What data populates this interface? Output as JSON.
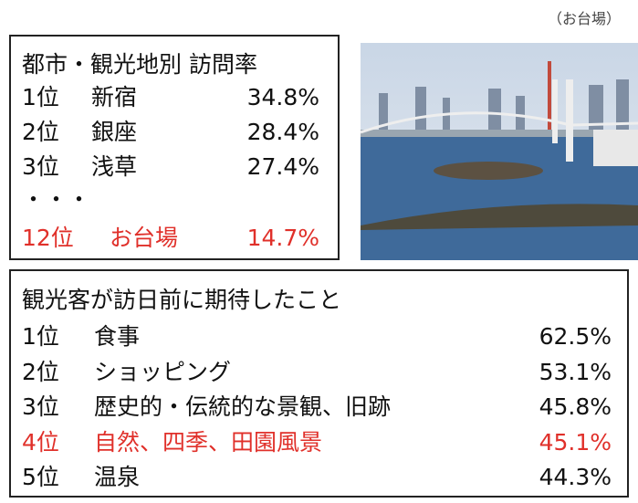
{
  "caption": "（お台場）",
  "visit_table": {
    "title": "都市・観光地別 訪問率",
    "rows": [
      [
        "1位",
        "新宿",
        "34.8%"
      ],
      [
        "2位",
        "銀座",
        "28.4%"
      ],
      [
        "3位",
        "浅草",
        "27.4%"
      ]
    ],
    "ellipsis": "・・・",
    "highlight_row": [
      "12位",
      "お台場",
      "14.7%"
    ]
  },
  "expectation_table": {
    "title": "観光客が訪日前に期待したこと",
    "rows": [
      [
        "1位",
        "食事",
        "62.5%"
      ],
      [
        "2位",
        "ショッピング",
        "53.1%"
      ],
      [
        "3位",
        "歴史的・伝統的な景観、旧跡",
        "45.8%"
      ],
      [
        "4位",
        "自然、四季、田園風景",
        "45.1%"
      ],
      [
        "5位",
        "温泉",
        "44.3%"
      ]
    ],
    "highlight_index": 3
  }
}
